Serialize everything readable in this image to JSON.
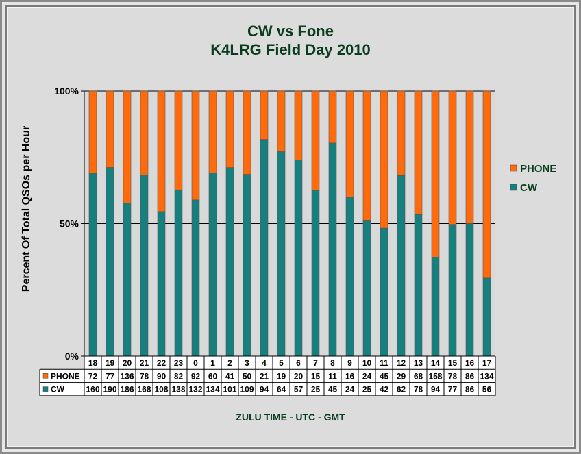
{
  "chart_data": {
    "type": "bar",
    "stacked": "percent",
    "title": "CW   vs   Fone",
    "subtitle": "K4LRG Field Day 2010",
    "xlabel": "ZULU TIME  -  UTC  -  GMT",
    "ylabel": "Percent Of Total  QSOs  per  Hour",
    "yticks": [
      "0%",
      "50%",
      "100%"
    ],
    "ylim": [
      0,
      100
    ],
    "categories": [
      "18",
      "19",
      "20",
      "21",
      "22",
      "23",
      "0",
      "1",
      "2",
      "3",
      "4",
      "5",
      "6",
      "7",
      "8",
      "9",
      "10",
      "11",
      "12",
      "13",
      "14",
      "15",
      "16",
      "17"
    ],
    "series": [
      {
        "name": "PHONE",
        "color": "#ff6a0d",
        "values": [
          72,
          77,
          136,
          78,
          90,
          82,
          92,
          60,
          41,
          50,
          21,
          19,
          20,
          15,
          11,
          16,
          24,
          45,
          29,
          68,
          158,
          78,
          86,
          134
        ]
      },
      {
        "name": "CW",
        "color": "#17807e",
        "values": [
          160,
          190,
          186,
          168,
          108,
          138,
          132,
          134,
          101,
          109,
          94,
          64,
          57,
          25,
          45,
          24,
          25,
          42,
          62,
          78,
          94,
          77,
          86,
          56
        ]
      }
    ],
    "legend_position": "right"
  }
}
